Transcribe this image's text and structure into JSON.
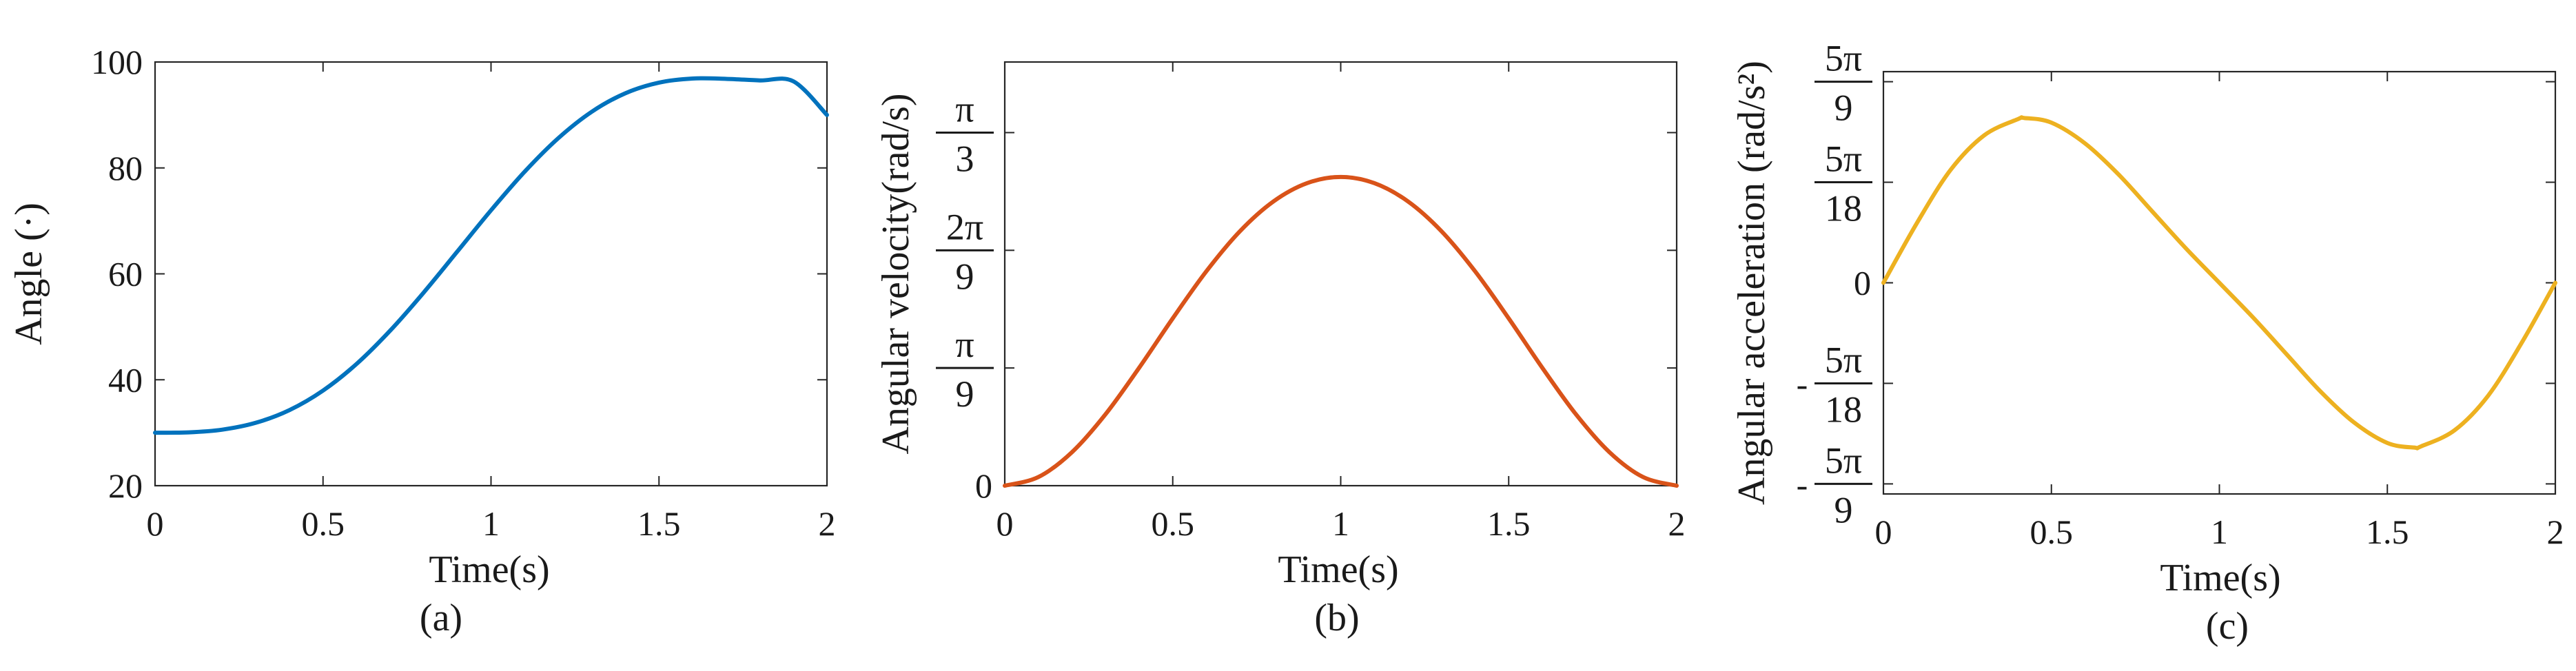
{
  "chart_data": [
    {
      "id": "a",
      "type": "line",
      "caption": "(a)",
      "xlabel": "Time(s)",
      "ylabel": "Angle (·)",
      "xlim": [
        0,
        2
      ],
      "ylim": [
        20,
        100
      ],
      "xticks": [
        {
          "value": 0,
          "label": "0"
        },
        {
          "value": 0.5,
          "label": "0.5"
        },
        {
          "value": 1,
          "label": "1"
        },
        {
          "value": 1.5,
          "label": "1.5"
        },
        {
          "value": 2,
          "label": "2"
        }
      ],
      "yticks": [
        {
          "value": 20,
          "label": "20"
        },
        {
          "value": 40,
          "label": "40"
        },
        {
          "value": 60,
          "label": "60"
        },
        {
          "value": 80,
          "label": "80"
        },
        {
          "value": 100,
          "label": "100"
        }
      ],
      "color": "#0072BD",
      "x": [
        0,
        0.1,
        0.2,
        0.3,
        0.4,
        0.5,
        0.6,
        0.7,
        0.8,
        0.9,
        1.0,
        1.1,
        1.2,
        1.3,
        1.4,
        1.5,
        1.6,
        1.7,
        1.8,
        1.9,
        2.0
      ],
      "y": [
        30,
        30.07,
        30.58,
        31.88,
        34.27,
        37.96,
        43.0,
        49.29,
        56.5,
        64.24,
        72.0,
        79.28,
        85.6,
        90.61,
        94.1,
        96.11,
        96.88,
        96.82,
        96.52,
        96.36,
        90.0
      ]
    },
    {
      "id": "b",
      "type": "line",
      "caption": "(b)",
      "xlabel": "Time(s)",
      "ylabel": "Angular velocity(rad/s)",
      "xlim": [
        0,
        2
      ],
      "ylim": [
        0,
        1.2566
      ],
      "xticks": [
        {
          "value": 0,
          "label": "0"
        },
        {
          "value": 0.5,
          "label": "0.5"
        },
        {
          "value": 1,
          "label": "1"
        },
        {
          "value": 1.5,
          "label": "1.5"
        },
        {
          "value": 2,
          "label": "2"
        }
      ],
      "yticks": [
        {
          "value": 0,
          "label": "0"
        },
        {
          "value": 0.3491,
          "num": "π",
          "den": "9"
        },
        {
          "value": 0.6981,
          "num": "2π",
          "den": "9"
        },
        {
          "value": 1.0472,
          "num": "π",
          "den": "3"
        }
      ],
      "color": "#D95319",
      "x": [
        0,
        0.1,
        0.2,
        0.3,
        0.4,
        0.5,
        0.6,
        0.7,
        0.8,
        0.9,
        1.0,
        1.1,
        1.2,
        1.3,
        1.4,
        1.5,
        1.6,
        1.7,
        1.8,
        1.9,
        2.0
      ],
      "y": [
        0,
        0.0256,
        0.0993,
        0.2119,
        0.3497,
        0.4963,
        0.6358,
        0.7546,
        0.8432,
        0.8973,
        0.9157,
        0.8973,
        0.8432,
        0.7546,
        0.6358,
        0.4963,
        0.3497,
        0.2119,
        0.0993,
        0.0256,
        0
      ]
    },
    {
      "id": "c",
      "type": "line",
      "caption": "(c)",
      "xlabel": "Time(s)",
      "ylabel": "Angular acceleration (rad/s²)",
      "xlim": [
        0,
        2
      ],
      "ylim": [
        -1.8326,
        1.8326
      ],
      "xticks": [
        {
          "value": 0,
          "label": "0"
        },
        {
          "value": 0.5,
          "label": "0.5"
        },
        {
          "value": 1,
          "label": "1"
        },
        {
          "value": 1.5,
          "label": "1.5"
        },
        {
          "value": 2,
          "label": "2"
        }
      ],
      "yticks": [
        {
          "value": -1.7453,
          "sign": "-",
          "num": "5π",
          "den": "9"
        },
        {
          "value": -0.8727,
          "sign": "-",
          "num": "5π",
          "den": "18"
        },
        {
          "value": 0,
          "label": "0"
        },
        {
          "value": 0.8727,
          "num": "5π",
          "den": "18"
        },
        {
          "value": 1.7453,
          "num": "5π",
          "den": "9"
        }
      ],
      "color": "#EDB120",
      "x": [
        0,
        0.1,
        0.2,
        0.3,
        0.4,
        0.42,
        0.5,
        0.6,
        0.7,
        0.8,
        0.9,
        1.0,
        1.1,
        1.2,
        1.3,
        1.4,
        1.5,
        1.58,
        1.6,
        1.7,
        1.8,
        1.9,
        2.0
      ],
      "y": [
        0,
        0.52,
        0.98,
        1.28,
        1.42,
        1.43,
        1.39,
        1.21,
        0.94,
        0.62,
        0.3,
        0,
        -0.3,
        -0.62,
        -0.94,
        -1.21,
        -1.39,
        -1.43,
        -1.42,
        -1.28,
        -0.98,
        -0.52,
        0
      ]
    }
  ]
}
